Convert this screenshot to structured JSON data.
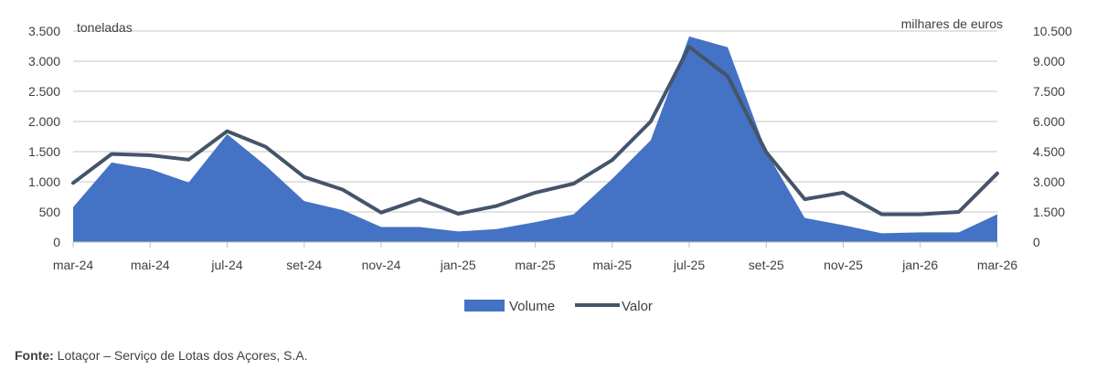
{
  "chart_data": {
    "type": "area+line",
    "categories": [
      "mar-24",
      "abr-24",
      "mai-24",
      "jun-24",
      "jul-24",
      "ago-24",
      "set-24",
      "out-24",
      "nov-24",
      "dez-24",
      "jan-25",
      "fev-25",
      "mar-25",
      "abr-25",
      "mai-25",
      "jun-25",
      "jul-25",
      "ago-25",
      "set-25",
      "out-25",
      "nov-25",
      "dez-25",
      "jan-26",
      "fev-26",
      "mar-26"
    ],
    "x_tick_labels": [
      "mar-24",
      "mai-24",
      "jul-24",
      "set-24",
      "nov-24",
      "jan-25",
      "mar-25",
      "mai-25",
      "jul-25",
      "set-25",
      "nov-25",
      "jan-26",
      "mar-26"
    ],
    "left_axis": {
      "label": "toneladas",
      "ylim": [
        0,
        3500
      ],
      "ticks": [
        0,
        500,
        1000,
        1500,
        2000,
        2500,
        3000,
        3500
      ],
      "tick_labels": [
        "0",
        "500",
        "1.000",
        "1.500",
        "2.000",
        "2.500",
        "3.000",
        "3.500"
      ]
    },
    "right_axis": {
      "label": "milhares de euros",
      "ylim": [
        0,
        10500
      ],
      "ticks": [
        0,
        1500,
        3000,
        4500,
        6000,
        7500,
        9000,
        10500
      ],
      "tick_labels": [
        "0",
        "1.500",
        "3.000",
        "4.500",
        "6.000",
        "7.500",
        "9.000",
        "10.500"
      ]
    },
    "series": [
      {
        "name": "Volume",
        "type": "area",
        "axis": "left",
        "color": "#4472C4",
        "values": [
          580,
          1320,
          1210,
          990,
          1790,
          1270,
          680,
          530,
          250,
          250,
          175,
          215,
          330,
          460,
          1050,
          1690,
          3410,
          3230,
          1500,
          400,
          280,
          145,
          160,
          160,
          460
        ]
      },
      {
        "name": "Valor",
        "type": "line",
        "axis": "right",
        "color": "#44546A",
        "values": [
          2940,
          4380,
          4320,
          4100,
          5520,
          4740,
          3240,
          2610,
          1470,
          2130,
          1410,
          1800,
          2460,
          2910,
          4080,
          6000,
          9720,
          8250,
          4470,
          2130,
          2460,
          1380,
          1380,
          1500,
          3420
        ]
      }
    ],
    "grid": "horizontal",
    "legend_position": "bottom"
  },
  "source": {
    "prefix": "Fonte:",
    "text": " Lotaçor – Serviço de Lotas dos Açores, S.A."
  }
}
